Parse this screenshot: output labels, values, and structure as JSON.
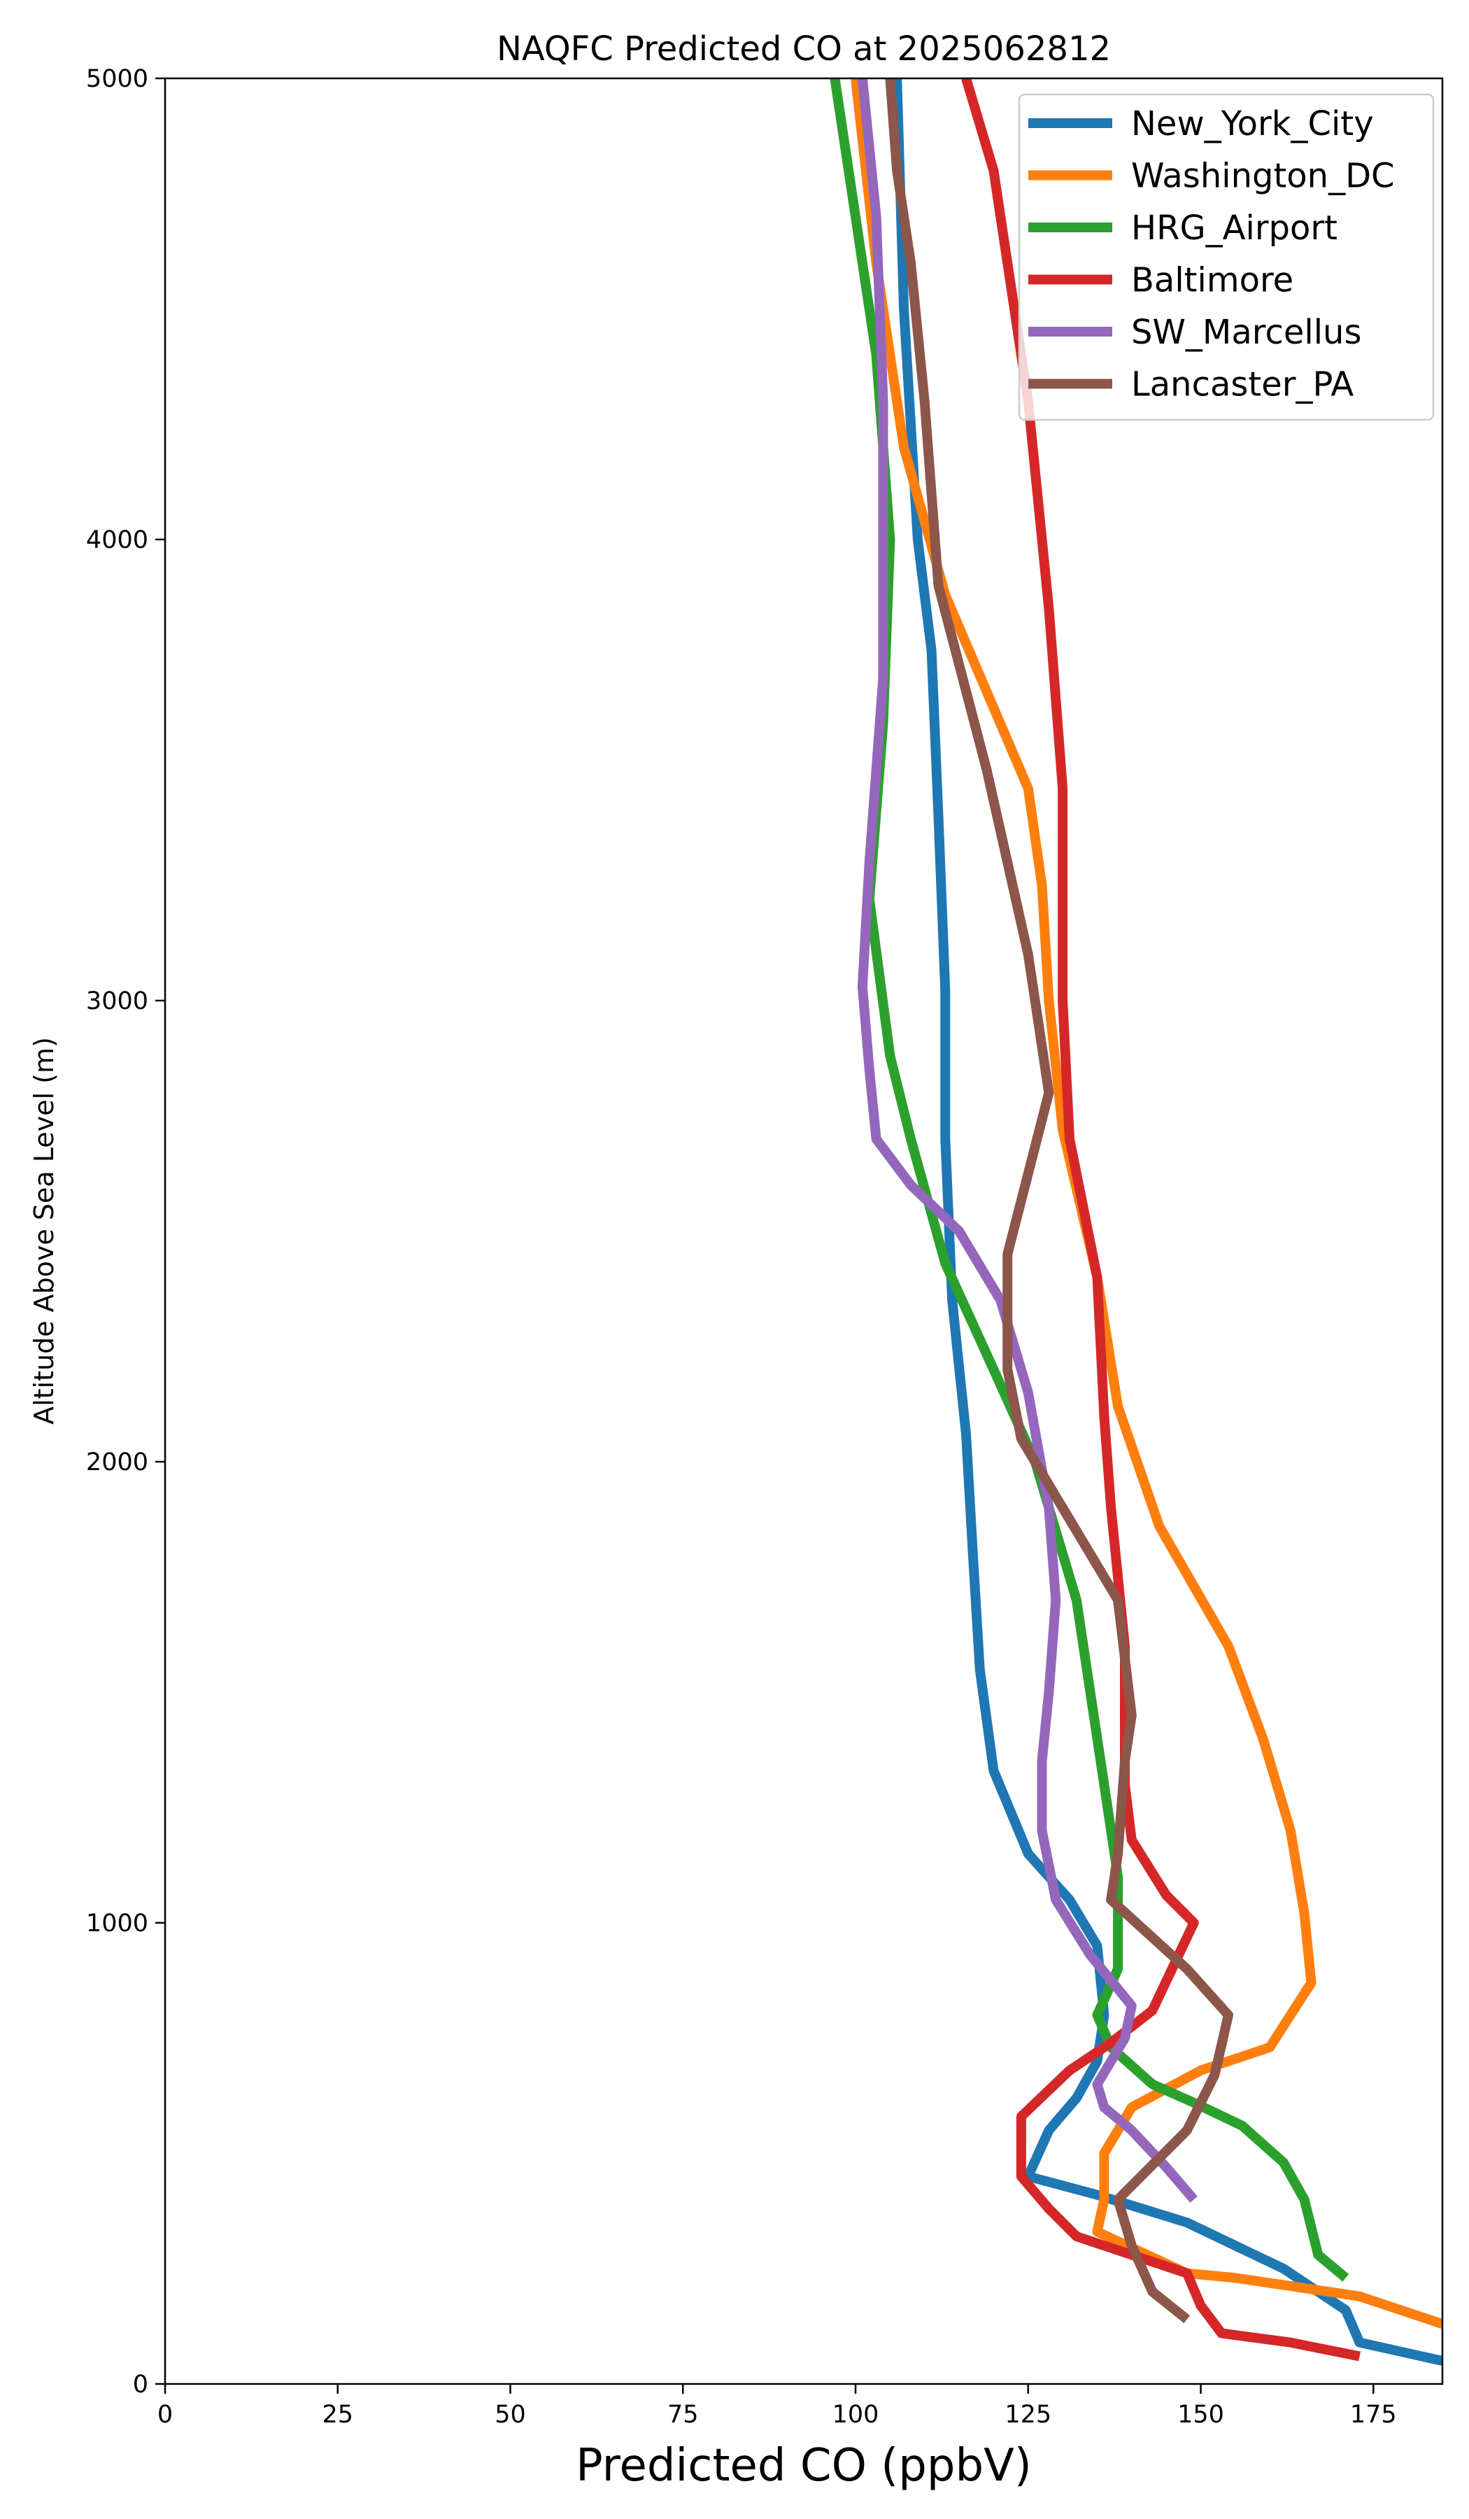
{
  "chart_data": {
    "type": "line",
    "title": "NAQFC Predicted CO at 2025062812",
    "xlabel": "Predicted CO (ppbV)",
    "ylabel": "Altitude Above Sea Level (m)",
    "xlim": [
      0,
      185
    ],
    "ylim": [
      0,
      5000
    ],
    "xticks": [
      "0",
      "25",
      "50",
      "75",
      "100",
      "125",
      "150",
      "175"
    ],
    "yticks": [
      "0",
      "1000",
      "2000",
      "3000",
      "4000",
      "5000"
    ],
    "grid": false,
    "legend_position": "top-right",
    "series": [
      {
        "name": "New_York_City",
        "color": "#1f77b4",
        "points": [
          [
            185,
            50
          ],
          [
            173,
            90
          ],
          [
            171,
            160
          ],
          [
            162,
            250
          ],
          [
            148,
            350
          ],
          [
            135,
            410
          ],
          [
            125,
            450
          ],
          [
            128,
            550
          ],
          [
            132,
            620
          ],
          [
            135,
            700
          ],
          [
            136,
            800
          ],
          [
            135,
            950
          ],
          [
            131,
            1050
          ],
          [
            125,
            1150
          ],
          [
            120,
            1330
          ],
          [
            118,
            1550
          ],
          [
            117,
            1800
          ],
          [
            116,
            2060
          ],
          [
            114,
            2350
          ],
          [
            113,
            2700
          ],
          [
            113,
            3020
          ],
          [
            112,
            3400
          ],
          [
            111,
            3760
          ],
          [
            109,
            4000
          ],
          [
            107,
            4500
          ],
          [
            106,
            5000
          ]
        ]
      },
      {
        "name": "Washington_DC",
        "color": "#ff7f0e",
        "points": [
          [
            185,
            130
          ],
          [
            173,
            190
          ],
          [
            155,
            230
          ],
          [
            148,
            240
          ],
          [
            135,
            330
          ],
          [
            136,
            400
          ],
          [
            136,
            500
          ],
          [
            140,
            600
          ],
          [
            150,
            680
          ],
          [
            160,
            730
          ],
          [
            166,
            870
          ],
          [
            165,
            1020
          ],
          [
            163,
            1200
          ],
          [
            159,
            1400
          ],
          [
            154,
            1600
          ],
          [
            144,
            1860
          ],
          [
            138,
            2120
          ],
          [
            135,
            2400
          ],
          [
            130,
            2720
          ],
          [
            128,
            3000
          ],
          [
            127,
            3250
          ],
          [
            125,
            3460
          ],
          [
            113,
            3880
          ],
          [
            107,
            4200
          ],
          [
            103,
            4600
          ],
          [
            100,
            5000
          ]
        ]
      },
      {
        "name": "HRG_Airport",
        "color": "#2ca02c",
        "points": [
          [
            171,
            230
          ],
          [
            167,
            280
          ],
          [
            165,
            400
          ],
          [
            162,
            480
          ],
          [
            156,
            560
          ],
          [
            149,
            610
          ],
          [
            143,
            650
          ],
          [
            137,
            730
          ],
          [
            135,
            800
          ],
          [
            138,
            900
          ],
          [
            138,
            1100
          ],
          [
            136,
            1300
          ],
          [
            134,
            1500
          ],
          [
            132,
            1700
          ],
          [
            129,
            1850
          ],
          [
            126,
            2000
          ],
          [
            120,
            2200
          ],
          [
            113,
            2430
          ],
          [
            108,
            2700
          ],
          [
            105,
            2880
          ],
          [
            102,
            3220
          ],
          [
            104,
            3600
          ],
          [
            105,
            4000
          ],
          [
            103,
            4400
          ],
          [
            100,
            4700
          ],
          [
            97,
            5000
          ]
        ]
      },
      {
        "name": "Baltimore",
        "color": "#d62728",
        "points": [
          [
            173,
            60
          ],
          [
            163,
            90
          ],
          [
            153,
            110
          ],
          [
            150,
            170
          ],
          [
            148,
            240
          ],
          [
            132,
            320
          ],
          [
            128,
            380
          ],
          [
            124,
            450
          ],
          [
            124,
            530
          ],
          [
            124,
            580
          ],
          [
            131,
            680
          ],
          [
            137,
            740
          ],
          [
            143,
            810
          ],
          [
            149,
            1000
          ],
          [
            145,
            1060
          ],
          [
            140,
            1180
          ],
          [
            139,
            1300
          ],
          [
            139,
            1600
          ],
          [
            137,
            1900
          ],
          [
            136,
            2100
          ],
          [
            135,
            2400
          ],
          [
            131,
            2700
          ],
          [
            130,
            3000
          ],
          [
            130,
            3460
          ],
          [
            128,
            3850
          ],
          [
            125,
            4300
          ],
          [
            120,
            4800
          ],
          [
            116,
            5000
          ]
        ]
      },
      {
        "name": "SW_Marcellus",
        "color": "#9467bd",
        "points": [
          [
            149,
            400
          ],
          [
            145,
            470
          ],
          [
            140,
            550
          ],
          [
            136,
            600
          ],
          [
            135,
            650
          ],
          [
            139,
            750
          ],
          [
            140,
            820
          ],
          [
            134,
            930
          ],
          [
            129,
            1050
          ],
          [
            127,
            1200
          ],
          [
            127,
            1350
          ],
          [
            128,
            1500
          ],
          [
            129,
            1700
          ],
          [
            128,
            1900
          ],
          [
            125,
            2150
          ],
          [
            121,
            2350
          ],
          [
            115,
            2500
          ],
          [
            108,
            2600
          ],
          [
            103,
            2700
          ],
          [
            102,
            2850
          ],
          [
            101,
            3030
          ],
          [
            102,
            3300
          ],
          [
            104,
            3700
          ],
          [
            104,
            4000
          ],
          [
            104,
            4300
          ],
          [
            103,
            4700
          ],
          [
            101,
            5000
          ]
        ]
      },
      {
        "name": "Lancaster_PA",
        "color": "#8c564b",
        "points": [
          [
            148,
            140
          ],
          [
            143,
            200
          ],
          [
            140,
            300
          ],
          [
            138,
            400
          ],
          [
            148,
            550
          ],
          [
            152,
            670
          ],
          [
            154,
            800
          ],
          [
            148,
            900
          ],
          [
            137,
            1050
          ],
          [
            138,
            1150
          ],
          [
            139,
            1350
          ],
          [
            140,
            1450
          ],
          [
            138,
            1700
          ],
          [
            130,
            1900
          ],
          [
            124,
            2050
          ],
          [
            122,
            2200
          ],
          [
            122,
            2450
          ],
          [
            128,
            2800
          ],
          [
            125,
            3100
          ],
          [
            119,
            3500
          ],
          [
            112,
            3900
          ],
          [
            110,
            4300
          ],
          [
            108,
            4600
          ],
          [
            106,
            4800
          ],
          [
            105,
            5000
          ]
        ]
      }
    ]
  }
}
